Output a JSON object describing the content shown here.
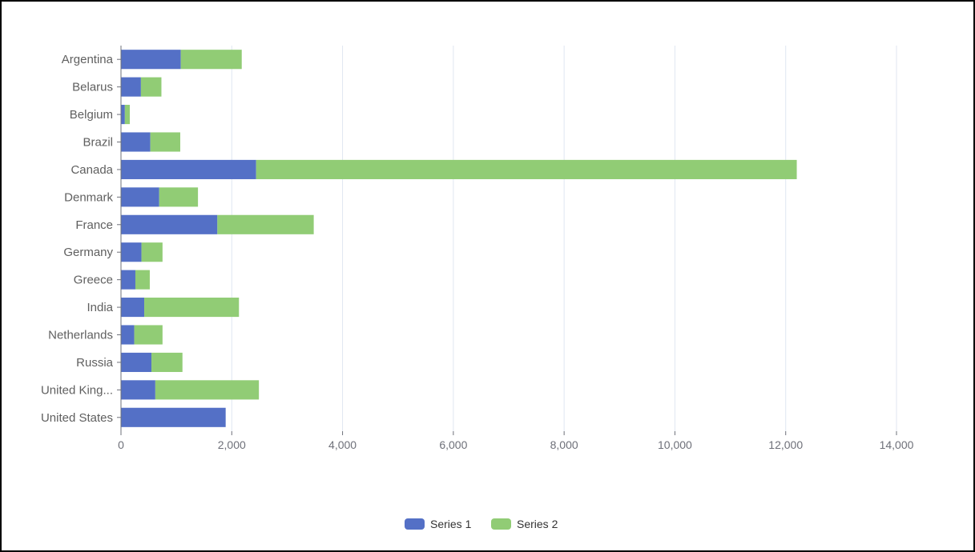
{
  "chart_data": {
    "type": "bar",
    "orientation": "horizontal",
    "stacked": true,
    "categories": [
      "Argentina",
      "Belarus",
      "Belgium",
      "Brazil",
      "Canada",
      "Denmark",
      "France",
      "Germany",
      "Greece",
      "India",
      "Netherlands",
      "Russia",
      "United King...",
      "United States"
    ],
    "series": [
      {
        "name": "Series 1",
        "color": "#5470c6",
        "values": [
          1080,
          360,
          70,
          530,
          2440,
          690,
          1740,
          370,
          260,
          420,
          240,
          550,
          620,
          1890
        ]
      },
      {
        "name": "Series 2",
        "color": "#91cc75",
        "values": [
          1100,
          370,
          90,
          540,
          9760,
          700,
          1740,
          380,
          260,
          1710,
          510,
          560,
          1870,
          0
        ]
      }
    ],
    "xlim": [
      0,
      14000
    ],
    "xticks": [
      "0",
      "2,000",
      "4,000",
      "6,000",
      "8,000",
      "10,000",
      "12,000",
      "14,000"
    ],
    "grid": true,
    "legend_position": "bottom-center",
    "title": "",
    "xlabel": "",
    "ylabel": ""
  }
}
